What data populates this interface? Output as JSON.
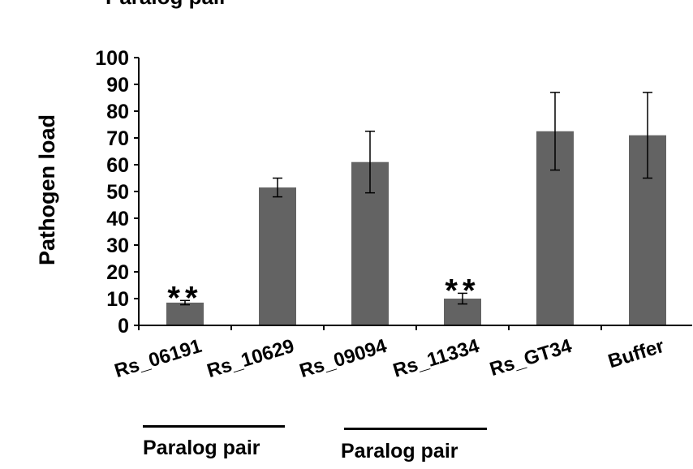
{
  "header": {
    "cut_title": "Paralog pair"
  },
  "chart_data": {
    "type": "bar",
    "categories": [
      "Rs_06191",
      "Rs_10629",
      "Rs_09094",
      "Rs_11334",
      "Rs_GT34",
      "Buffer"
    ],
    "values": [
      8.5,
      51.5,
      61,
      10,
      72.5,
      71
    ],
    "error": [
      0.8,
      3.5,
      11.5,
      2,
      14.5,
      16
    ],
    "annotations": [
      "**",
      "",
      "",
      "**",
      "",
      ""
    ],
    "title": "",
    "xlabel": "",
    "ylabel": "Pathogen load",
    "ylim": [
      0,
      100
    ],
    "yticks": [
      0,
      10,
      20,
      30,
      40,
      50,
      60,
      70,
      80,
      90,
      100
    ],
    "grid": false,
    "bar_color": "#636363",
    "groups": [
      {
        "label": "Paralog pair",
        "members": [
          "Rs_06191",
          "Rs_10629"
        ]
      },
      {
        "label": "Paralog pair",
        "members": [
          "Rs_09094",
          "Rs_11334"
        ]
      }
    ]
  }
}
